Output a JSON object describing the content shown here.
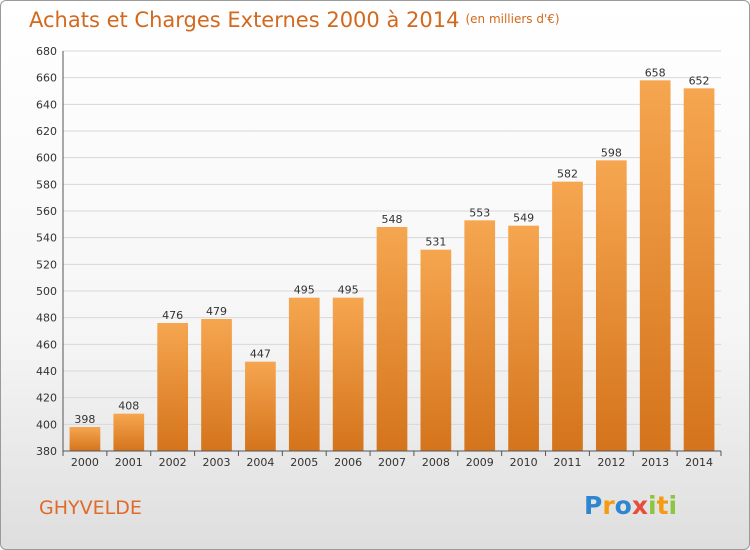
{
  "title": "Achats et Charges Externes 2000 à 2014",
  "unit": "(en milliers d'€)",
  "city": "GHYVELDE",
  "logo": {
    "letters": [
      "P",
      "r",
      "o",
      "x",
      "i",
      "t",
      "i"
    ],
    "colors": [
      "#2e86d1",
      "#f39c12",
      "#2e86d1",
      "#e74c3c",
      "#8cc63f",
      "#f39c12",
      "#8cc63f"
    ]
  },
  "colors": {
    "bar_light": "#f6a650",
    "bar_dark": "#d4741c",
    "title": "#d2691e"
  },
  "chart_data": {
    "type": "bar",
    "categories": [
      "2000",
      "2001",
      "2002",
      "2003",
      "2004",
      "2005",
      "2006",
      "2007",
      "2008",
      "2009",
      "2010",
      "2011",
      "2012",
      "2013",
      "2014"
    ],
    "values": [
      398,
      408,
      476,
      479,
      447,
      495,
      495,
      548,
      531,
      553,
      549,
      582,
      598,
      658,
      652
    ],
    "yticks": [
      380,
      400,
      420,
      440,
      460,
      480,
      500,
      520,
      540,
      560,
      580,
      600,
      620,
      640,
      660,
      680
    ],
    "ylim": [
      380,
      680
    ],
    "grid": true
  }
}
